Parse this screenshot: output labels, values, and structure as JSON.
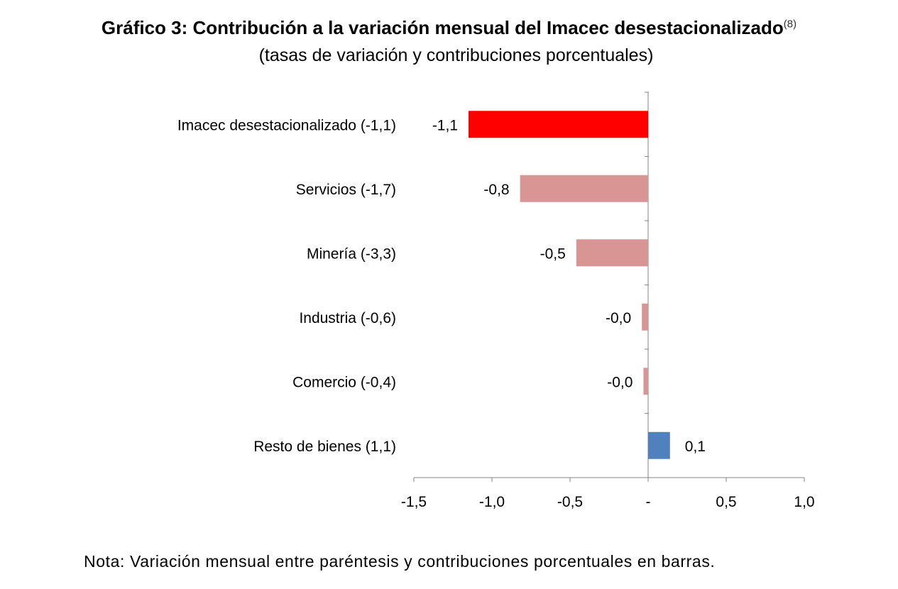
{
  "title": {
    "main": "Gráfico 3: Contribución a la variación mensual del Imacec desestacionalizado",
    "superscript": "(8)",
    "subtitle": "(tasas de variación y contribuciones porcentuales)"
  },
  "note": "Nota: Variación mensual entre paréntesis y contribuciones porcentuales en barras.",
  "chart_data": {
    "type": "bar",
    "orientation": "horizontal",
    "categories": [
      "Imacec desestacionalizado (-1,1)",
      "Servicios (-1,7)",
      "Minería (-3,3)",
      "Industria (-0,6)",
      "Comercio (-0,4)",
      "Resto de bienes (1,1)"
    ],
    "values": [
      -1.15,
      -0.82,
      -0.46,
      -0.04,
      -0.03,
      0.14
    ],
    "data_labels": [
      "-1,1",
      "-0,8",
      "-0,5",
      "-0,0",
      "-0,0",
      "0,1"
    ],
    "bar_colors": [
      "#ff0000",
      "#d99594",
      "#d99594",
      "#d99594",
      "#d99594",
      "#4f81bd"
    ],
    "xlim": [
      -1.5,
      1.0
    ],
    "x_ticks": [
      -1.5,
      -1.0,
      -0.5,
      0,
      0.5,
      1.0
    ],
    "x_tick_labels": [
      "-1,5",
      "-1,0",
      "-0,5",
      "-",
      "0,5",
      "1,0"
    ],
    "grid": false,
    "legend": "none",
    "axis_color": "#868686"
  }
}
